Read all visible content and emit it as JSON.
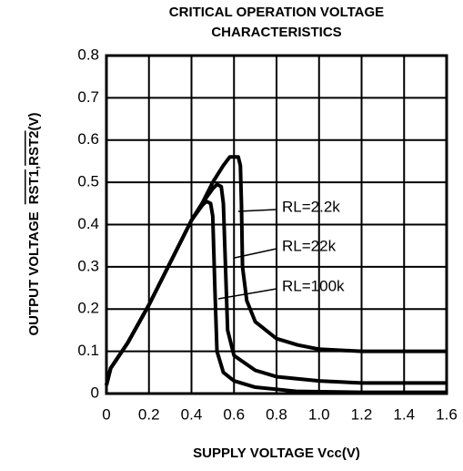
{
  "chart_data": {
    "type": "line",
    "title": [
      "CRITICAL OPERATION VOLTAGE",
      "CHARACTERISTICS"
    ],
    "x_label": "SUPPLY VOLTAGE Vcc(V)",
    "y_label": "OUTPUT VOLTAGE",
    "y_label_signals": [
      "RST1",
      "RST2"
    ],
    "y_label_unit": "(V)",
    "xlim": [
      0,
      1.6
    ],
    "ylim": [
      0,
      0.8
    ],
    "xticks": [
      0,
      0.2,
      0.4,
      0.6,
      0.8,
      {
        "value": 1,
        "label": "1.0"
      },
      1.2,
      1.4,
      1.6
    ],
    "yticks": [
      0,
      0.1,
      0.2,
      0.3,
      0.4,
      0.5,
      0.6,
      0.7,
      0.8
    ],
    "grid": true,
    "series": [
      {
        "name": "RL=2.2k",
        "color": "#000000",
        "x": [
          0,
          0.02,
          0.1,
          0.2,
          0.3,
          0.4,
          0.45,
          0.5,
          0.55,
          0.58,
          0.62,
          0.63,
          0.635,
          0.64,
          0.66,
          0.7,
          0.8,
          0.9,
          1.0,
          1.2,
          1.6
        ],
        "values": [
          0.02,
          0.06,
          0.12,
          0.21,
          0.31,
          0.41,
          0.45,
          0.5,
          0.54,
          0.56,
          0.56,
          0.54,
          0.45,
          0.3,
          0.22,
          0.17,
          0.13,
          0.115,
          0.105,
          0.1,
          0.1
        ]
      },
      {
        "name": "RL=22k",
        "color": "#000000",
        "x": [
          0,
          0.02,
          0.1,
          0.2,
          0.3,
          0.4,
          0.45,
          0.5,
          0.52,
          0.54,
          0.55,
          0.56,
          0.57,
          0.6,
          0.7,
          0.8,
          1.0,
          1.2,
          1.6
        ],
        "values": [
          0.02,
          0.06,
          0.12,
          0.21,
          0.31,
          0.41,
          0.45,
          0.485,
          0.495,
          0.49,
          0.45,
          0.3,
          0.15,
          0.09,
          0.055,
          0.04,
          0.03,
          0.025,
          0.025
        ]
      },
      {
        "name": "RL=100k",
        "color": "#000000",
        "x": [
          0,
          0.02,
          0.1,
          0.2,
          0.3,
          0.4,
          0.45,
          0.47,
          0.49,
          0.5,
          0.51,
          0.52,
          0.55,
          0.6,
          0.7,
          0.9,
          1.2,
          1.6
        ],
        "values": [
          0.02,
          0.06,
          0.12,
          0.21,
          0.31,
          0.41,
          0.445,
          0.455,
          0.45,
          0.42,
          0.25,
          0.1,
          0.05,
          0.03,
          0.015,
          0.005,
          0.003,
          0.003
        ]
      }
    ]
  }
}
